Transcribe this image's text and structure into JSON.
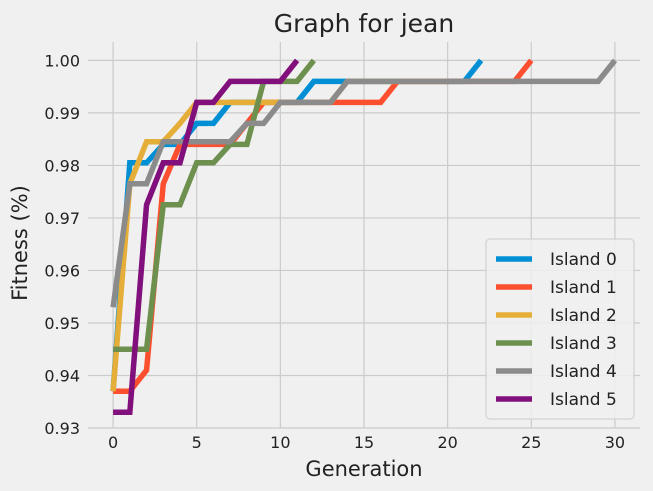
{
  "chart_data": {
    "type": "line",
    "title": "Graph for jean",
    "xlabel": "Generation",
    "ylabel": "Fitness (%)",
    "xlim": [
      -1.5,
      31.5
    ],
    "ylim": [
      0.93,
      1.0035
    ],
    "x_ticks": [
      0,
      5,
      10,
      15,
      20,
      25,
      30
    ],
    "y_ticks": [
      0.93,
      0.94,
      0.95,
      0.96,
      0.97,
      0.98,
      0.99,
      1.0
    ],
    "x_tick_labels": [
      "0",
      "5",
      "10",
      "15",
      "20",
      "25",
      "30"
    ],
    "y_tick_labels": [
      "0.93",
      "0.94",
      "0.95",
      "0.96",
      "0.97",
      "0.98",
      "0.99",
      "1.00"
    ],
    "grid": true,
    "legend_position": "bottom-right",
    "series": [
      {
        "name": "Island 0",
        "color": "#008fd5",
        "x": [
          0,
          1,
          2,
          3,
          4,
          5,
          6,
          7,
          8,
          9,
          10,
          11,
          12,
          13,
          14,
          15,
          16,
          17,
          18,
          19,
          20,
          21,
          22
        ],
        "y": [
          0.937,
          0.9805,
          0.9805,
          0.984,
          0.984,
          0.988,
          0.988,
          0.992,
          0.992,
          0.992,
          0.992,
          0.992,
          0.996,
          0.996,
          0.996,
          0.996,
          0.996,
          0.996,
          0.996,
          0.996,
          0.996,
          0.996,
          1.0
        ]
      },
      {
        "name": "Island 1",
        "color": "#fc4f30",
        "x": [
          0,
          1,
          2,
          3,
          4,
          5,
          6,
          7,
          8,
          9,
          10,
          11,
          12,
          13,
          14,
          15,
          16,
          17,
          18,
          19,
          20,
          21,
          22,
          23,
          24,
          25
        ],
        "y": [
          0.937,
          0.937,
          0.941,
          0.9765,
          0.984,
          0.984,
          0.984,
          0.984,
          0.988,
          0.992,
          0.992,
          0.992,
          0.992,
          0.992,
          0.992,
          0.992,
          0.992,
          0.996,
          0.996,
          0.996,
          0.996,
          0.996,
          0.996,
          0.996,
          0.996,
          1.0
        ]
      },
      {
        "name": "Island 2",
        "color": "#e5ae38",
        "x": [
          0,
          1,
          2,
          3,
          4,
          5,
          6,
          7,
          8,
          9,
          10,
          11,
          12,
          13,
          14,
          15,
          16,
          17,
          18,
          19,
          20
        ],
        "y": [
          0.937,
          0.9765,
          0.9845,
          0.9845,
          0.988,
          0.992,
          0.992,
          0.992,
          0.992,
          0.992,
          0.992,
          0.992,
          0.992,
          0.992,
          0.996,
          0.996,
          0.996,
          0.996,
          0.996,
          0.996,
          0.996
        ]
      },
      {
        "name": "Island 3",
        "color": "#6d904f",
        "x": [
          0,
          1,
          2,
          3,
          4,
          5,
          6,
          7,
          8,
          9,
          10,
          11,
          12
        ],
        "y": [
          0.945,
          0.945,
          0.945,
          0.9725,
          0.9725,
          0.9805,
          0.9805,
          0.984,
          0.984,
          0.996,
          0.996,
          0.996,
          1.0
        ]
      },
      {
        "name": "Island 4",
        "color": "#8b8b8b",
        "x": [
          0,
          1,
          2,
          3,
          4,
          5,
          6,
          7,
          8,
          9,
          10,
          11,
          12,
          13,
          14,
          15,
          16,
          17,
          18,
          19,
          20,
          21,
          22,
          23,
          24,
          25,
          26,
          27,
          28,
          29,
          30
        ],
        "y": [
          0.953,
          0.9765,
          0.9765,
          0.9845,
          0.9845,
          0.9845,
          0.9845,
          0.9845,
          0.988,
          0.988,
          0.992,
          0.992,
          0.992,
          0.992,
          0.996,
          0.996,
          0.996,
          0.996,
          0.996,
          0.996,
          0.996,
          0.996,
          0.996,
          0.996,
          0.996,
          0.996,
          0.996,
          0.996,
          0.996,
          0.996,
          1.0
        ]
      },
      {
        "name": "Island 5",
        "color": "#810f7c",
        "x": [
          0,
          1,
          2,
          3,
          4,
          5,
          6,
          7,
          8,
          9,
          10,
          11
        ],
        "y": [
          0.933,
          0.933,
          0.9725,
          0.9805,
          0.9805,
          0.992,
          0.992,
          0.996,
          0.996,
          0.996,
          0.996,
          1.0
        ]
      }
    ]
  }
}
